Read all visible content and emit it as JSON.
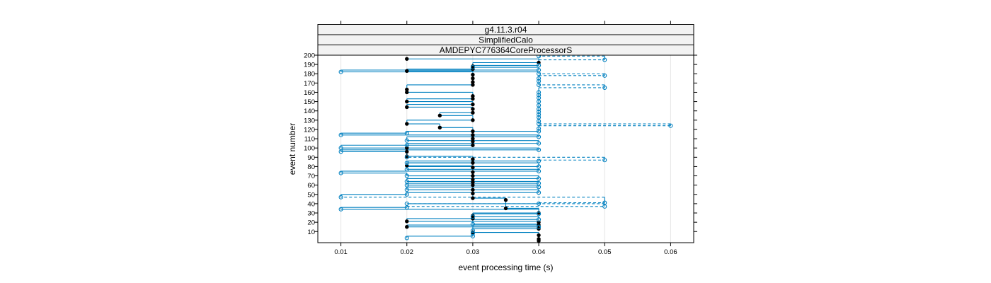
{
  "chart_data": {
    "type": "scatter",
    "strips": [
      "g4.11.3.r04",
      "SimplifiedCalo",
      "AMDEPYC776364CoreProcessorS"
    ],
    "xlabel": "event processing time (s)",
    "ylabel": "event number",
    "xlim": [
      0.0065,
      0.0635
    ],
    "ylim": [
      -2,
      200
    ],
    "xticks": [
      0.01,
      0.02,
      0.03,
      0.04,
      0.05,
      0.06
    ],
    "xtick_labels": [
      "0.01",
      "0.02",
      "0.03",
      "0.04",
      "0.05",
      "0.06"
    ],
    "yticks": [
      10,
      20,
      30,
      40,
      50,
      60,
      70,
      80,
      90,
      100,
      110,
      120,
      130,
      140,
      150,
      160,
      170,
      180,
      190,
      200
    ],
    "ytick_labels": [
      "10",
      "20",
      "30",
      "40",
      "50",
      "60",
      "70",
      "80",
      "90",
      "100",
      "110",
      "120",
      "130",
      "140",
      "150",
      "160",
      "170",
      "180",
      "190",
      "200"
    ],
    "grid": "vertical",
    "colors": {
      "series_a": "#000000",
      "series_b": "#0080c0",
      "grid": "#e6e6e6",
      "strip_bg": "#f2f2f2"
    },
    "series": [
      {
        "marker": "filled-circle",
        "points": [
          [
            0.04,
            0
          ],
          [
            0.04,
            2
          ],
          [
            0.04,
            6
          ],
          [
            0.03,
            9
          ],
          [
            0.04,
            13
          ],
          [
            0.02,
            15
          ],
          [
            0.04,
            17
          ],
          [
            0.04,
            20
          ],
          [
            0.02,
            21
          ],
          [
            0.03,
            24
          ],
          [
            0.03,
            27
          ],
          [
            0.04,
            30
          ],
          [
            0.035,
            35
          ],
          [
            0.035,
            44
          ],
          [
            0.03,
            46
          ],
          [
            0.03,
            51
          ],
          [
            0.03,
            55
          ],
          [
            0.03,
            60
          ],
          [
            0.03,
            63
          ],
          [
            0.03,
            66
          ],
          [
            0.03,
            70
          ],
          [
            0.03,
            74
          ],
          [
            0.03,
            79
          ],
          [
            0.02,
            81
          ],
          [
            0.03,
            84
          ],
          [
            0.03,
            88
          ],
          [
            0.02,
            91
          ],
          [
            0.02,
            96
          ],
          [
            0.02,
            100
          ],
          [
            0.03,
            103
          ],
          [
            0.03,
            107
          ],
          [
            0.03,
            110
          ],
          [
            0.03,
            114
          ],
          [
            0.03,
            118
          ],
          [
            0.025,
            122
          ],
          [
            0.02,
            126
          ],
          [
            0.025,
            135
          ],
          [
            0.03,
            130
          ],
          [
            0.03,
            138
          ],
          [
            0.03,
            142
          ],
          [
            0.02,
            144
          ],
          [
            0.03,
            147
          ],
          [
            0.02,
            150
          ],
          [
            0.03,
            153
          ],
          [
            0.03,
            156
          ],
          [
            0.02,
            160
          ],
          [
            0.02,
            163
          ],
          [
            0.03,
            168
          ],
          [
            0.03,
            171
          ],
          [
            0.03,
            175
          ],
          [
            0.03,
            179
          ],
          [
            0.02,
            183
          ],
          [
            0.03,
            185
          ],
          [
            0.03,
            188
          ],
          [
            0.04,
            192
          ],
          [
            0.02,
            196
          ]
        ]
      },
      {
        "marker": "open-circle",
        "points": [
          [
            0.02,
            3
          ],
          [
            0.03,
            5
          ],
          [
            0.03,
            8
          ],
          [
            0.03,
            11
          ],
          [
            0.04,
            15
          ],
          [
            0.03,
            18
          ],
          [
            0.04,
            23
          ],
          [
            0.03,
            26
          ],
          [
            0.04,
            29
          ],
          [
            0.01,
            34
          ],
          [
            0.02,
            36
          ],
          [
            0.05,
            37
          ],
          [
            0.02,
            40
          ],
          [
            0.04,
            40
          ],
          [
            0.05,
            41
          ],
          [
            0.01,
            47
          ],
          [
            0.02,
            50
          ],
          [
            0.04,
            52
          ],
          [
            0.02,
            55
          ],
          [
            0.04,
            58
          ],
          [
            0.02,
            60
          ],
          [
            0.04,
            62
          ],
          [
            0.02,
            64
          ],
          [
            0.04,
            67
          ],
          [
            0.02,
            70
          ],
          [
            0.01,
            73
          ],
          [
            0.04,
            75
          ],
          [
            0.02,
            77
          ],
          [
            0.04,
            80
          ],
          [
            0.02,
            84
          ],
          [
            0.04,
            86
          ],
          [
            0.05,
            87
          ],
          [
            0.02,
            90
          ],
          [
            0.01,
            96
          ],
          [
            0.01,
            100
          ],
          [
            0.04,
            98
          ],
          [
            0.02,
            103
          ],
          [
            0.04,
            105
          ],
          [
            0.02,
            108
          ],
          [
            0.04,
            112
          ],
          [
            0.01,
            114
          ],
          [
            0.02,
            116
          ],
          [
            0.04,
            118
          ],
          [
            0.04,
            121
          ],
          [
            0.06,
            124
          ],
          [
            0.04,
            126
          ],
          [
            0.04,
            129
          ],
          [
            0.04,
            133
          ],
          [
            0.04,
            136
          ],
          [
            0.04,
            139
          ],
          [
            0.04,
            142
          ],
          [
            0.04,
            146
          ],
          [
            0.04,
            150
          ],
          [
            0.04,
            154
          ],
          [
            0.04,
            157
          ],
          [
            0.04,
            160
          ],
          [
            0.05,
            165
          ],
          [
            0.04,
            168
          ],
          [
            0.04,
            172
          ],
          [
            0.04,
            175
          ],
          [
            0.05,
            178
          ],
          [
            0.01,
            182
          ],
          [
            0.04,
            180
          ],
          [
            0.04,
            184
          ],
          [
            0.03,
            187
          ],
          [
            0.04,
            189
          ],
          [
            0.05,
            195
          ],
          [
            0.04,
            199
          ]
        ]
      }
    ]
  }
}
